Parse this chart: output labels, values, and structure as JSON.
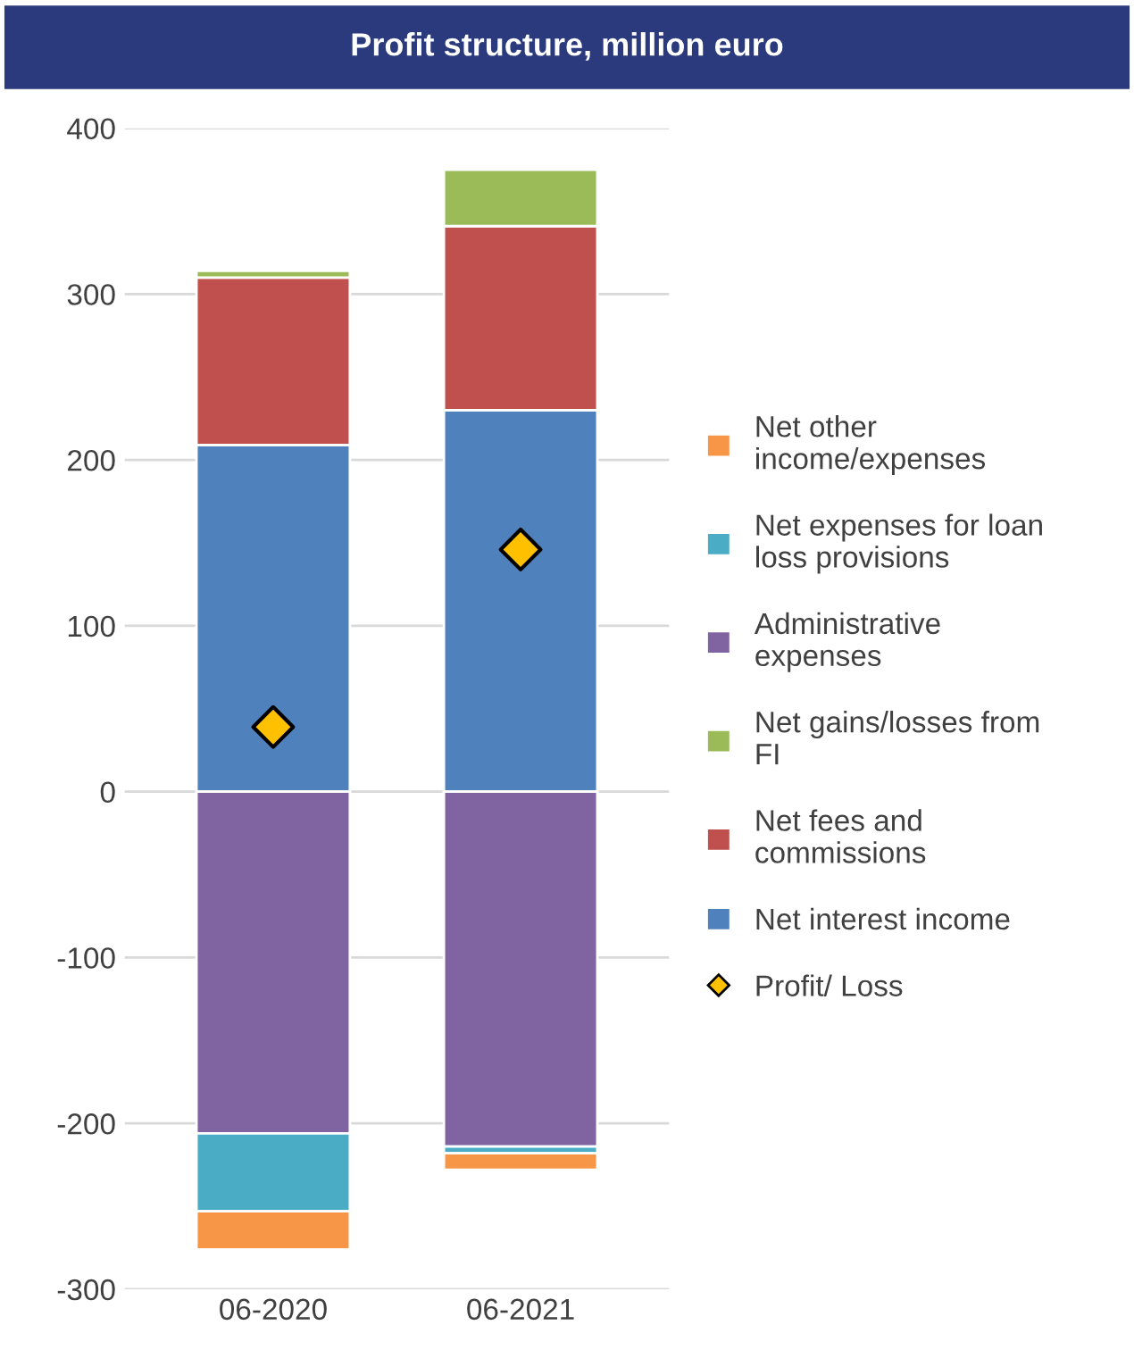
{
  "chart_data": {
    "type": "bar",
    "title": "Profit structure, million euro",
    "stacked": true,
    "categories": [
      "06-2020",
      "06-2021"
    ],
    "series": [
      {
        "name": "Net interest income",
        "color": "#4f81bd",
        "values": [
          209,
          230
        ]
      },
      {
        "name": "Net fees and commissions",
        "color": "#c0504d",
        "values": [
          101,
          111
        ]
      },
      {
        "name": "Net gains/losses from FI",
        "color": "#9bbb59",
        "values": [
          4,
          34
        ]
      },
      {
        "name": "Administrative expenses",
        "color": "#8064a2",
        "values": [
          -206,
          -214
        ]
      },
      {
        "name": "Net expenses for loan loss provisions",
        "color": "#4bacc6",
        "values": [
          -47,
          -4
        ]
      },
      {
        "name": "Net other income/expenses",
        "color": "#f79646",
        "values": [
          -23,
          -10
        ]
      },
      {
        "name": "Profit/ Loss",
        "type": "scatter",
        "marker": "diamond",
        "color": "#ffc000",
        "x": [
          "06-2020",
          "06-2021"
        ],
        "values": [
          39,
          146
        ]
      }
    ],
    "ylim": [
      -300,
      400
    ],
    "yticks": [
      -300,
      -200,
      -100,
      0,
      100,
      200,
      300,
      400
    ],
    "grid": "y",
    "legend": "right"
  }
}
